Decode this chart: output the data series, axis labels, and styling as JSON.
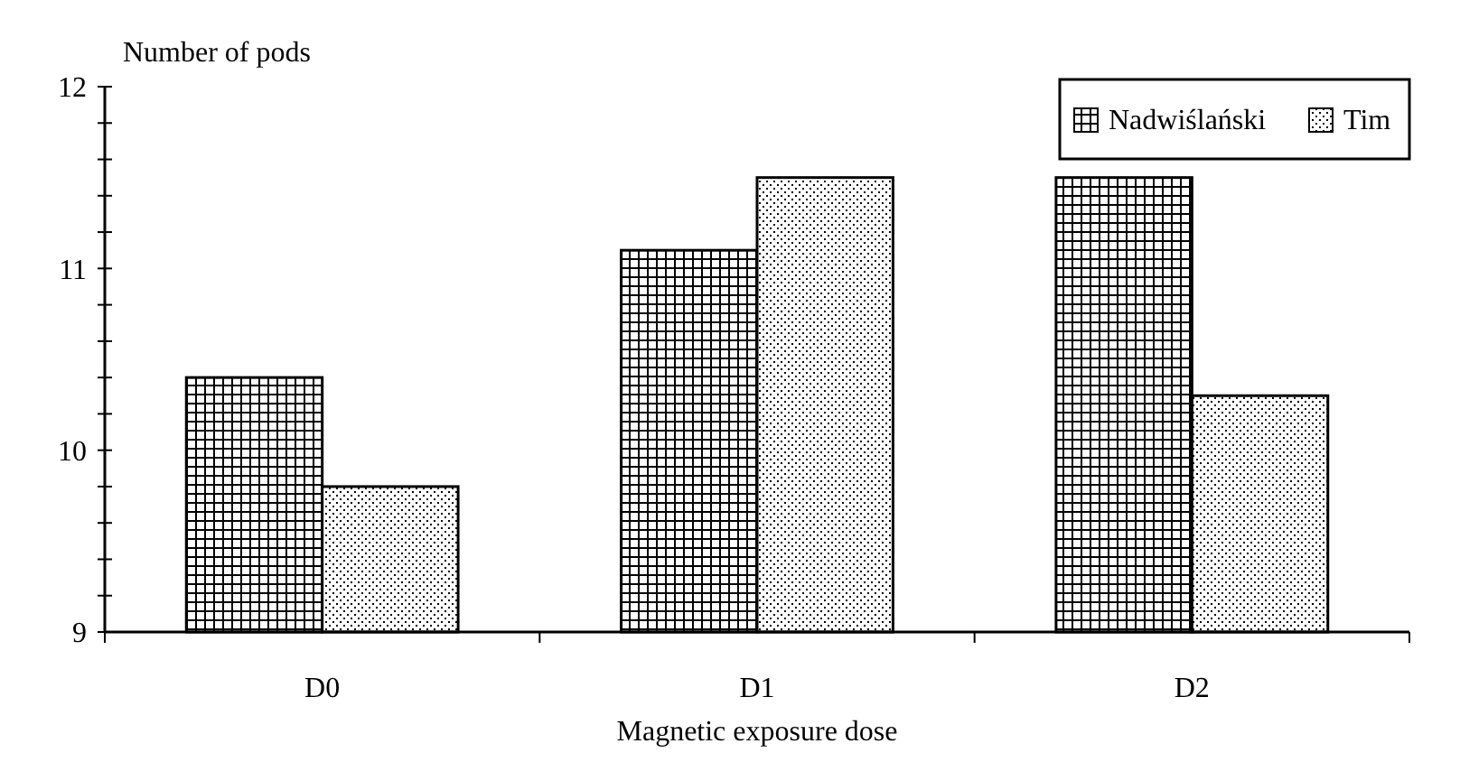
{
  "chart_data": {
    "type": "bar",
    "ylabel": "Number of  pods",
    "xlabel": "Magnetic exposure dose",
    "categories": [
      "D0",
      "D1",
      "D2"
    ],
    "series": [
      {
        "name": "Nadwiślański",
        "color": "#000000",
        "values": [
          10.4,
          11.1,
          11.5
        ]
      },
      {
        "name": "Tim",
        "color": "#000000",
        "values": [
          9.8,
          11.5,
          10.3
        ]
      }
    ],
    "ylim": [
      9,
      12
    ],
    "yticks": [
      9,
      {
        "value": 9.2,
        "label": null
      },
      {
        "value": 9.4,
        "label": null
      },
      {
        "value": 9.6,
        "label": null
      },
      {
        "value": 9.8,
        "label": null
      },
      10,
      {
        "value": 10.2,
        "label": null
      },
      {
        "value": 10.4,
        "label": null
      },
      {
        "value": 10.6,
        "label": null
      },
      {
        "value": 10.8,
        "label": null
      },
      11,
      {
        "value": 11.2,
        "label": null
      },
      {
        "value": 11.4,
        "label": null
      },
      {
        "value": 11.6,
        "label": null
      },
      {
        "value": 11.8,
        "label": null
      },
      12
    ],
    "legend": "top right"
  }
}
